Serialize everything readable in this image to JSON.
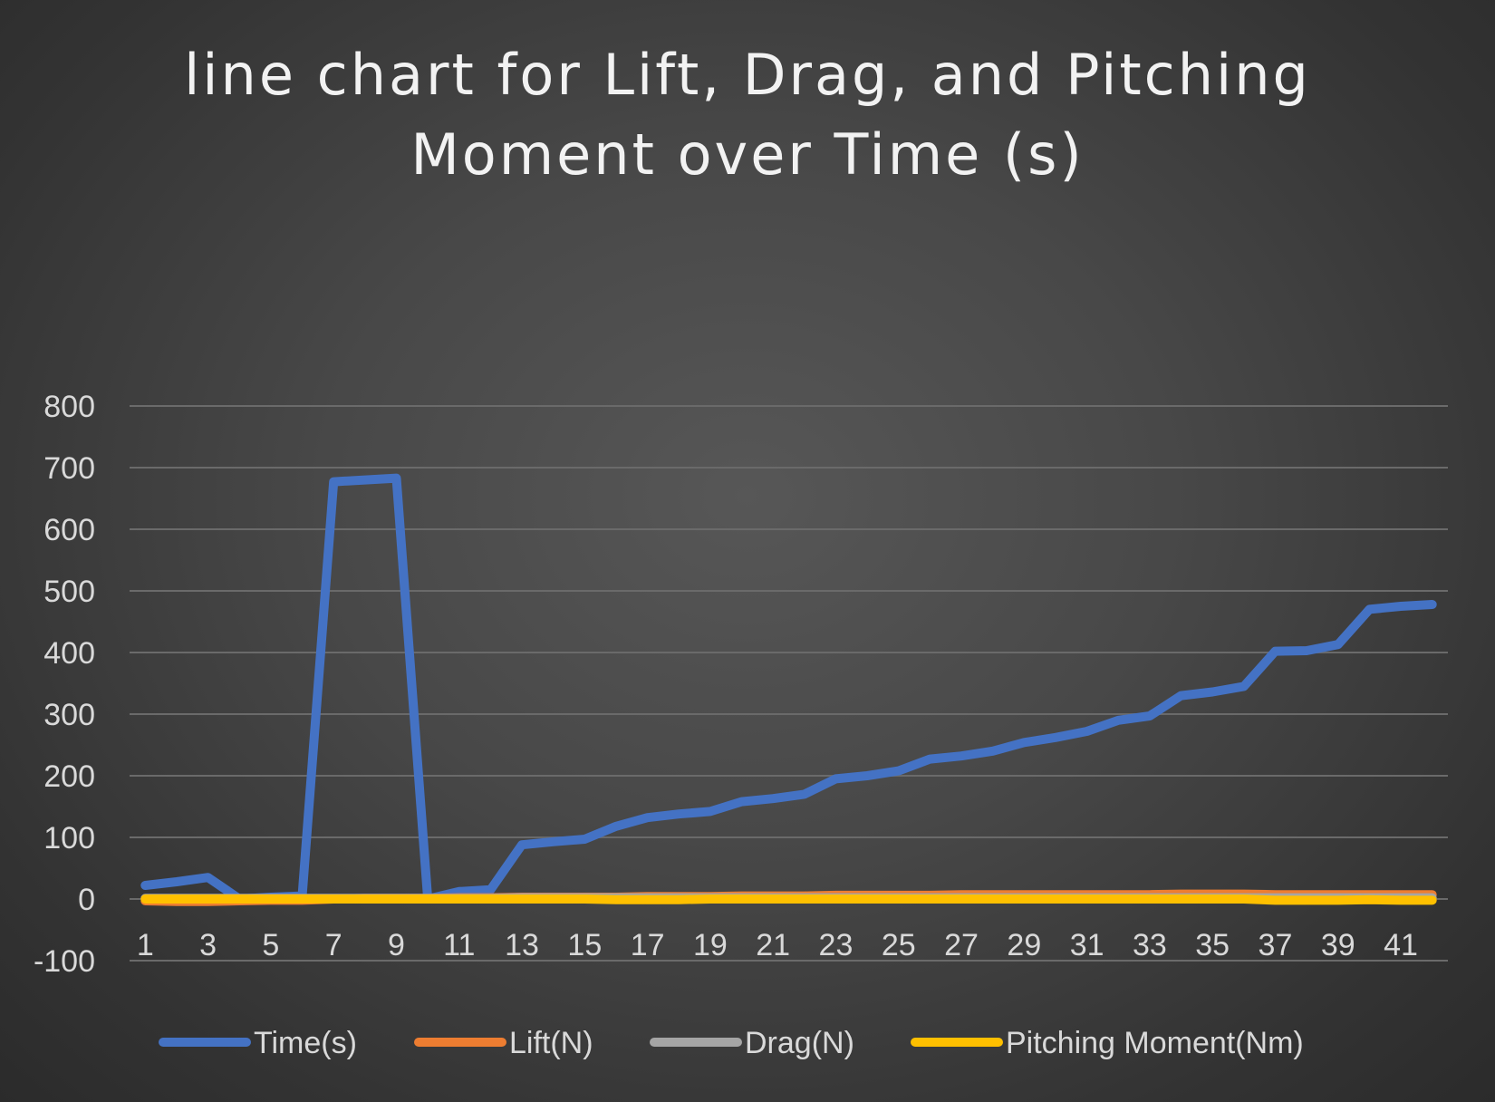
{
  "chart_data": {
    "type": "line",
    "title_lines": [
      "line chart for Lift, Drag, and Pitching",
      "Moment over Time (s)"
    ],
    "xlabel": "",
    "ylabel": "",
    "ylim": [
      -100,
      800
    ],
    "yticks": [
      800,
      700,
      600,
      500,
      400,
      300,
      200,
      100,
      0,
      -100
    ],
    "xtick_labels": [
      "1",
      "3",
      "5",
      "7",
      "9",
      "11",
      "13",
      "15",
      "17",
      "19",
      "21",
      "23",
      "25",
      "27",
      "29",
      "31",
      "33",
      "35",
      "37",
      "39",
      "41"
    ],
    "x": [
      1,
      2,
      3,
      4,
      5,
      6,
      7,
      8,
      9,
      10,
      11,
      12,
      13,
      14,
      15,
      16,
      17,
      18,
      19,
      20,
      21,
      22,
      23,
      24,
      25,
      26,
      27,
      28,
      29,
      30,
      31,
      32,
      33,
      34,
      35,
      36,
      37,
      38,
      39,
      40,
      41,
      42
    ],
    "grid": true,
    "legend_position": "bottom",
    "series": [
      {
        "name": "Time(s)",
        "color": "#4472c4",
        "values": [
          22,
          28,
          35,
          0,
          3,
          5,
          677,
          680,
          683,
          0,
          12,
          15,
          88,
          93,
          97,
          118,
          132,
          138,
          142,
          158,
          163,
          170,
          195,
          200,
          208,
          227,
          232,
          240,
          254,
          262,
          272,
          290,
          297,
          330,
          336,
          345,
          402,
          403,
          413,
          470,
          475,
          478
        ]
      },
      {
        "name": "Lift(N)",
        "color": "#ed7d31",
        "values": [
          -3,
          -4,
          -4,
          -3,
          -2,
          -2,
          0,
          1,
          1,
          1,
          2,
          2,
          3,
          3,
          3,
          3,
          4,
          4,
          4,
          5,
          5,
          5,
          6,
          6,
          6,
          6,
          7,
          7,
          7,
          7,
          7,
          7,
          7,
          8,
          8,
          8,
          7,
          7,
          7,
          7,
          7,
          7
        ]
      },
      {
        "name": "Drag(N)",
        "color": "#a5a5a5",
        "values": [
          1,
          1,
          1,
          1,
          1,
          1,
          1,
          1,
          1,
          1,
          1,
          1,
          2,
          2,
          2,
          2,
          2,
          2,
          2,
          2,
          2,
          2,
          2,
          2,
          2,
          2,
          2,
          2,
          2,
          2,
          2,
          2,
          2,
          2,
          2,
          2,
          2,
          2,
          2,
          2,
          2,
          2
        ]
      },
      {
        "name": "Pitching Moment(Nm)",
        "color": "#ffc000",
        "values": [
          0,
          0,
          0,
          0,
          0,
          0,
          0,
          0,
          0,
          0,
          0,
          0,
          0,
          0,
          0,
          -1,
          -1,
          -1,
          0,
          0,
          0,
          0,
          0,
          0,
          0,
          0,
          0,
          0,
          0,
          0,
          0,
          0,
          0,
          0,
          0,
          0,
          -2,
          -2,
          -2,
          -1,
          -2,
          -2
        ]
      }
    ]
  }
}
